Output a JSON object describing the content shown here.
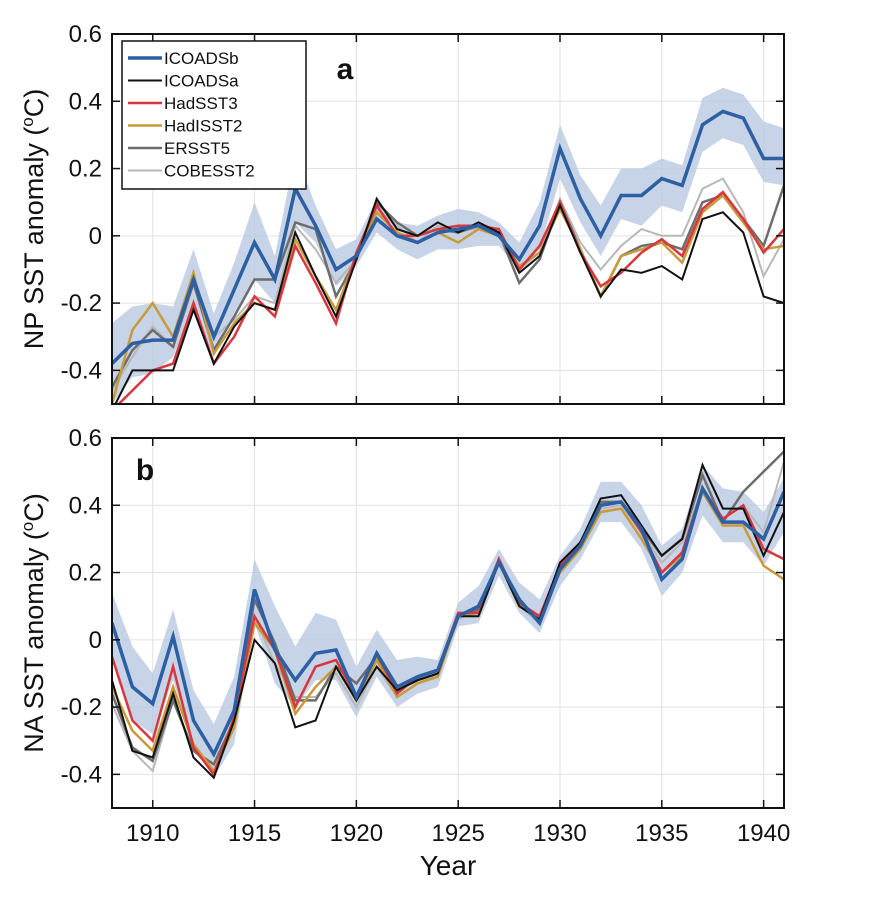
{
  "chart_data": [
    {
      "type": "line",
      "panel_label": "a",
      "ylabel_main": "NP SST anomaly (",
      "ylabel_sup": "o",
      "ylabel_end": "C)",
      "xlabel": "",
      "xlim": [
        1908,
        1941
      ],
      "ylim": [
        -0.5,
        0.6
      ],
      "yticks": [
        -0.4,
        -0.2,
        0,
        0.2,
        0.4,
        0.6
      ],
      "ytick_labels": [
        "-0.4",
        "-0.2",
        "0",
        "0.2",
        "0.4",
        "0.6"
      ],
      "xticks": [
        1910,
        1915,
        1920,
        1925,
        1930,
        1935,
        1940
      ],
      "xtick_labels": [],
      "grid": true,
      "legend_position": "top-left",
      "x": [
        1908,
        1909,
        1910,
        1911,
        1912,
        1913,
        1914,
        1915,
        1916,
        1917,
        1918,
        1919,
        1920,
        1921,
        1922,
        1923,
        1924,
        1925,
        1926,
        1927,
        1928,
        1929,
        1930,
        1931,
        1932,
        1933,
        1934,
        1935,
        1936,
        1937,
        1938,
        1939,
        1940,
        1941
      ],
      "band": {
        "series": "ICOADSb",
        "color": "#b9c8e0",
        "lower": [
          -0.5,
          -0.42,
          -0.41,
          -0.36,
          -0.21,
          -0.36,
          -0.23,
          -0.13,
          -0.2,
          0.04,
          -0.02,
          -0.15,
          -0.09,
          0.01,
          -0.04,
          -0.07,
          -0.04,
          -0.04,
          -0.03,
          -0.03,
          -0.1,
          -0.04,
          0.17,
          0.04,
          -0.06,
          0.05,
          0.03,
          0.09,
          0.07,
          0.25,
          0.29,
          0.27,
          0.16,
          0.15
        ],
        "upper": [
          -0.26,
          -0.21,
          -0.2,
          -0.21,
          -0.04,
          -0.23,
          -0.08,
          0.1,
          -0.06,
          0.25,
          0.09,
          -0.04,
          -0.01,
          0.11,
          0.04,
          0.03,
          0.06,
          0.08,
          0.07,
          0.04,
          -0.02,
          0.1,
          0.33,
          0.18,
          0.09,
          0.2,
          0.2,
          0.23,
          0.21,
          0.41,
          0.44,
          0.42,
          0.34,
          0.32
        ]
      },
      "series": [
        {
          "name": "COBESST2",
          "color": "#b8b8b8",
          "width": 2,
          "values": [
            -0.46,
            -0.36,
            -0.27,
            -0.33,
            -0.13,
            -0.3,
            -0.25,
            -0.18,
            -0.2,
            0.03,
            -0.04,
            -0.14,
            -0.07,
            0.08,
            0.03,
            -0.02,
            0.03,
            0.02,
            0.02,
            0.02,
            -0.1,
            -0.05,
            0.11,
            -0.02,
            -0.1,
            -0.03,
            0.02,
            0.0,
            0.0,
            0.14,
            0.17,
            0.07,
            -0.12,
            -0.01
          ]
        },
        {
          "name": "ERSST5",
          "color": "#6d6d6d",
          "width": 2.5,
          "values": [
            -0.45,
            -0.34,
            -0.28,
            -0.33,
            -0.14,
            -0.34,
            -0.24,
            -0.13,
            -0.13,
            0.04,
            0.02,
            -0.18,
            -0.07,
            0.1,
            0.04,
            0.0,
            0.02,
            0.01,
            0.03,
            0.01,
            -0.14,
            -0.07,
            0.1,
            -0.04,
            -0.18,
            -0.06,
            -0.03,
            -0.02,
            -0.04,
            0.1,
            0.12,
            0.05,
            -0.03,
            0.15
          ]
        },
        {
          "name": "HadISST2",
          "color": "#c89a3a",
          "width": 2.5,
          "values": [
            -0.5,
            -0.28,
            -0.2,
            -0.3,
            -0.11,
            -0.35,
            -0.26,
            -0.2,
            -0.22,
            -0.01,
            -0.12,
            -0.22,
            -0.06,
            0.07,
            0.01,
            -0.02,
            0.01,
            -0.02,
            0.02,
            0.0,
            -0.09,
            -0.05,
            0.08,
            -0.04,
            -0.18,
            -0.06,
            -0.04,
            -0.02,
            -0.08,
            0.07,
            0.12,
            0.04,
            -0.04,
            -0.03
          ]
        },
        {
          "name": "HadSST3",
          "color": "#d9373f",
          "width": 2.5,
          "values": [
            -0.52,
            -0.46,
            -0.4,
            -0.38,
            -0.2,
            -0.38,
            -0.3,
            -0.18,
            -0.24,
            -0.03,
            -0.14,
            -0.26,
            -0.05,
            0.09,
            0.0,
            0.0,
            0.02,
            0.03,
            0.03,
            0.02,
            -0.1,
            -0.03,
            0.1,
            -0.05,
            -0.15,
            -0.11,
            -0.05,
            -0.01,
            -0.06,
            0.08,
            0.13,
            0.05,
            -0.05,
            0.02
          ]
        },
        {
          "name": "ICOADSa",
          "color": "#111111",
          "width": 2,
          "values": [
            -0.52,
            -0.4,
            -0.4,
            -0.4,
            -0.22,
            -0.38,
            -0.27,
            -0.2,
            -0.22,
            0.01,
            -0.12,
            -0.24,
            -0.07,
            0.11,
            0.02,
            0.0,
            0.04,
            0.01,
            0.04,
            0.01,
            -0.11,
            -0.06,
            0.09,
            -0.05,
            -0.18,
            -0.1,
            -0.11,
            -0.09,
            -0.13,
            0.05,
            0.07,
            0.01,
            -0.18,
            -0.2
          ]
        },
        {
          "name": "ICOADSb",
          "color": "#2d5fa3",
          "width": 3.5,
          "values": [
            -0.38,
            -0.32,
            -0.31,
            -0.31,
            -0.13,
            -0.3,
            -0.16,
            -0.02,
            -0.13,
            0.14,
            0.03,
            -0.1,
            -0.06,
            0.05,
            0.0,
            -0.02,
            0.01,
            0.02,
            0.03,
            0.0,
            -0.07,
            0.03,
            0.26,
            0.11,
            0.0,
            0.12,
            0.12,
            0.17,
            0.15,
            0.33,
            0.37,
            0.35,
            0.23,
            0.23
          ]
        }
      ],
      "legend": [
        {
          "name": "ICOADSb",
          "color": "#2d5fa3",
          "width": 3.5
        },
        {
          "name": "ICOADSa",
          "color": "#111111",
          "width": 2
        },
        {
          "name": "HadSST3",
          "color": "#d9373f",
          "width": 2.5
        },
        {
          "name": "HadISST2",
          "color": "#c89a3a",
          "width": 2.5
        },
        {
          "name": "ERSST5",
          "color": "#6d6d6d",
          "width": 2.5
        },
        {
          "name": "COBESST2",
          "color": "#b8b8b8",
          "width": 2
        }
      ]
    },
    {
      "type": "line",
      "panel_label": "b",
      "ylabel_main": "NA SST anomaly (",
      "ylabel_sup": "o",
      "ylabel_end": "C)",
      "xlabel": "Year",
      "xlim": [
        1908,
        1941
      ],
      "ylim": [
        -0.5,
        0.6
      ],
      "yticks": [
        -0.4,
        -0.2,
        0,
        0.2,
        0.4,
        0.6
      ],
      "ytick_labels": [
        "-0.4",
        "-0.2",
        "0",
        "0.2",
        "0.4",
        "0.6"
      ],
      "xticks": [
        1910,
        1915,
        1920,
        1925,
        1930,
        1935,
        1940
      ],
      "xtick_labels": [
        "1910",
        "1915",
        "1920",
        "1925",
        "1930",
        "1935",
        "1940"
      ],
      "grid": true,
      "x": [
        1908,
        1909,
        1910,
        1911,
        1912,
        1913,
        1914,
        1915,
        1916,
        1917,
        1918,
        1919,
        1920,
        1921,
        1922,
        1923,
        1924,
        1925,
        1926,
        1927,
        1928,
        1929,
        1930,
        1931,
        1932,
        1933,
        1934,
        1935,
        1936,
        1937,
        1938,
        1939,
        1940,
        1941
      ],
      "band": {
        "series": "ICOADSb",
        "color": "#b9c8e0",
        "lower": [
          -0.06,
          -0.24,
          -0.28,
          -0.12,
          -0.32,
          -0.41,
          -0.31,
          0.05,
          -0.13,
          -0.2,
          -0.12,
          -0.12,
          -0.23,
          -0.11,
          -0.2,
          -0.16,
          -0.14,
          0.04,
          0.05,
          0.19,
          0.08,
          0.02,
          0.16,
          0.24,
          0.35,
          0.35,
          0.27,
          0.13,
          0.2,
          0.37,
          0.29,
          0.29,
          0.22,
          0.32
        ],
        "upper": [
          0.14,
          -0.02,
          -0.1,
          0.09,
          -0.15,
          -0.25,
          -0.11,
          0.24,
          0.1,
          -0.02,
          0.08,
          0.06,
          -0.08,
          0.03,
          -0.06,
          -0.05,
          -0.06,
          0.11,
          0.16,
          0.27,
          0.17,
          0.12,
          0.25,
          0.33,
          0.47,
          0.47,
          0.4,
          0.28,
          0.33,
          0.52,
          0.45,
          0.44,
          0.38,
          0.48
        ]
      },
      "series": [
        {
          "name": "COBESST2",
          "color": "#b8b8b8",
          "width": 2,
          "values": [
            -0.19,
            -0.33,
            -0.39,
            -0.18,
            -0.33,
            -0.39,
            -0.26,
            0.07,
            -0.07,
            -0.17,
            -0.17,
            -0.1,
            -0.2,
            -0.08,
            -0.17,
            -0.13,
            -0.1,
            0.06,
            0.09,
            0.23,
            0.1,
            0.05,
            0.2,
            0.27,
            0.39,
            0.4,
            0.32,
            0.23,
            0.29,
            0.45,
            0.36,
            0.4,
            0.32,
            0.53
          ]
        },
        {
          "name": "ERSST5",
          "color": "#6d6d6d",
          "width": 2.5,
          "values": [
            -0.16,
            -0.32,
            -0.36,
            -0.18,
            -0.33,
            -0.37,
            -0.24,
            0.12,
            -0.01,
            -0.18,
            -0.18,
            -0.08,
            -0.13,
            -0.05,
            -0.15,
            -0.12,
            -0.1,
            0.07,
            0.09,
            0.24,
            0.11,
            0.06,
            0.22,
            0.29,
            0.41,
            0.41,
            0.33,
            0.25,
            0.3,
            0.49,
            0.35,
            0.44,
            0.5,
            0.56
          ]
        },
        {
          "name": "HadISST2",
          "color": "#c89a3a",
          "width": 2.5,
          "values": [
            -0.14,
            -0.27,
            -0.33,
            -0.14,
            -0.31,
            -0.39,
            -0.26,
            0.05,
            -0.03,
            -0.22,
            -0.14,
            -0.08,
            -0.18,
            -0.06,
            -0.17,
            -0.13,
            -0.11,
            0.07,
            0.08,
            0.23,
            0.1,
            0.07,
            0.2,
            0.27,
            0.38,
            0.39,
            0.3,
            0.2,
            0.25,
            0.44,
            0.34,
            0.34,
            0.22,
            0.18
          ]
        },
        {
          "name": "HadSST3",
          "color": "#d9373f",
          "width": 2.5,
          "values": [
            -0.05,
            -0.24,
            -0.3,
            -0.08,
            -0.32,
            -0.4,
            -0.23,
            0.07,
            -0.03,
            -0.2,
            -0.08,
            -0.06,
            -0.17,
            -0.04,
            -0.16,
            -0.11,
            -0.09,
            0.08,
            0.08,
            0.24,
            0.11,
            0.07,
            0.22,
            0.29,
            0.4,
            0.41,
            0.32,
            0.2,
            0.26,
            0.45,
            0.36,
            0.4,
            0.27,
            0.24
          ]
        },
        {
          "name": "ICOADSa",
          "color": "#111111",
          "width": 2,
          "values": [
            -0.12,
            -0.33,
            -0.35,
            -0.16,
            -0.35,
            -0.41,
            -0.24,
            0.0,
            -0.07,
            -0.26,
            -0.24,
            -0.08,
            -0.18,
            -0.08,
            -0.15,
            -0.12,
            -0.1,
            0.07,
            0.07,
            0.23,
            0.1,
            0.06,
            0.23,
            0.29,
            0.42,
            0.43,
            0.34,
            0.25,
            0.3,
            0.52,
            0.39,
            0.39,
            0.25,
            0.38
          ]
        },
        {
          "name": "ICOADSb",
          "color": "#2d5fa3",
          "width": 3.5,
          "values": [
            0.05,
            -0.14,
            -0.19,
            0.01,
            -0.24,
            -0.34,
            -0.21,
            0.15,
            -0.03,
            -0.12,
            -0.04,
            -0.03,
            -0.17,
            -0.04,
            -0.14,
            -0.11,
            -0.09,
            0.07,
            0.1,
            0.23,
            0.12,
            0.05,
            0.21,
            0.28,
            0.4,
            0.41,
            0.33,
            0.18,
            0.24,
            0.45,
            0.35,
            0.35,
            0.3,
            0.44
          ]
        }
      ]
    }
  ]
}
